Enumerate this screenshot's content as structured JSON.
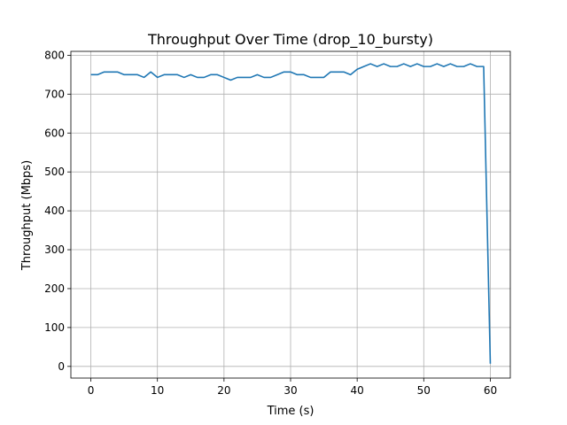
{
  "chart_data": {
    "type": "line",
    "title": "Throughput Over Time (drop_10_bursty)",
    "xlabel": "Time (s)",
    "ylabel": "Throughput (Mbps)",
    "xlim": [
      -3,
      63
    ],
    "ylim": [
      -30,
      810
    ],
    "x_ticks": [
      0,
      10,
      20,
      30,
      40,
      50,
      60
    ],
    "y_ticks": [
      0,
      100,
      200,
      300,
      400,
      500,
      600,
      700,
      800
    ],
    "grid": true,
    "legend": "none",
    "series": [
      {
        "color": "#1f77b4",
        "x": [
          0,
          1,
          2,
          3,
          4,
          5,
          6,
          7,
          8,
          9,
          10,
          11,
          12,
          13,
          14,
          15,
          16,
          17,
          18,
          19,
          20,
          21,
          22,
          23,
          24,
          25,
          26,
          27,
          28,
          29,
          30,
          31,
          32,
          33,
          34,
          35,
          36,
          37,
          38,
          39,
          40,
          41,
          42,
          43,
          44,
          45,
          46,
          47,
          48,
          49,
          50,
          51,
          52,
          53,
          54,
          55,
          56,
          57,
          58,
          59,
          60
        ],
        "values": [
          750,
          750,
          757,
          757,
          757,
          750,
          750,
          750,
          743,
          757,
          743,
          750,
          750,
          750,
          743,
          750,
          743,
          743,
          750,
          750,
          743,
          736,
          743,
          743,
          743,
          750,
          743,
          743,
          750,
          757,
          757,
          750,
          750,
          743,
          743,
          743,
          757,
          757,
          757,
          750,
          764,
          771,
          778,
          771,
          778,
          771,
          771,
          778,
          771,
          778,
          771,
          771,
          778,
          771,
          778,
          771,
          771,
          778,
          771,
          771,
          7
        ]
      }
    ]
  }
}
